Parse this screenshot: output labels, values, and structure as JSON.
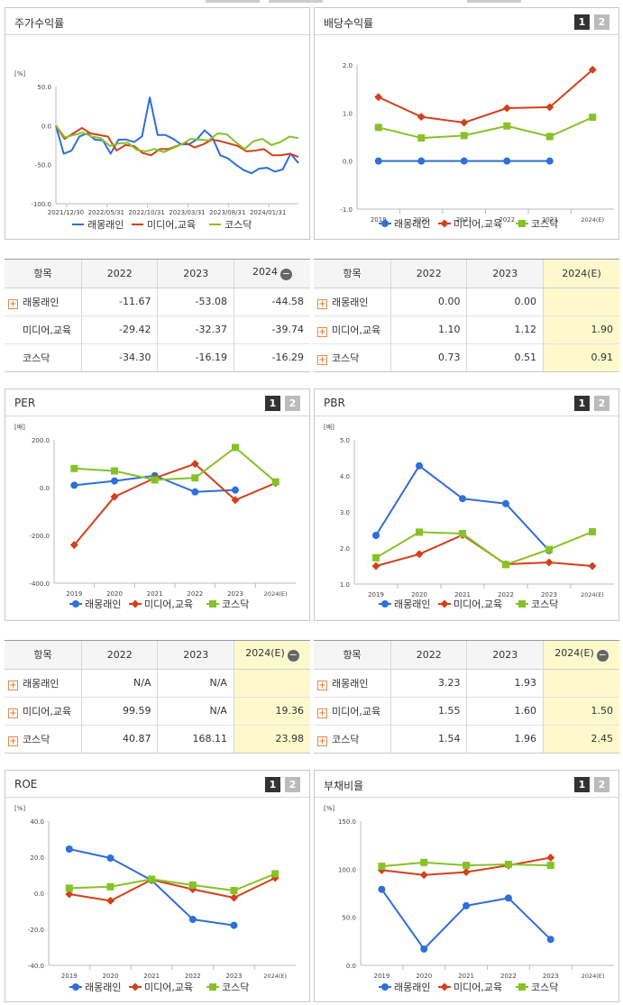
{
  "colors": {
    "series1": "#2e6fd8",
    "series2": "#d4401a",
    "series3": "#86c226",
    "highlight": "#fdf9cc"
  },
  "legend": [
    "래몽래인",
    "미디어,교육",
    "코스닥"
  ],
  "panels": {
    "stock": {
      "title": "주가수익률"
    },
    "dividend": {
      "title": "배당수익률",
      "page1": "1",
      "page2": "2"
    },
    "per": {
      "title": "PER",
      "page1": "1",
      "page2": "2"
    },
    "pbr": {
      "title": "PBR",
      "page1": "1",
      "page2": "2"
    },
    "roe": {
      "title": "ROE",
      "page1": "1",
      "page2": "2"
    },
    "debt": {
      "title": "부채비율",
      "page1": "1",
      "page2": "2"
    }
  },
  "chart_data": [
    {
      "id": "stock",
      "type": "line",
      "title": "주가수익률",
      "unit": "[%]",
      "ylim": [
        -100,
        50
      ],
      "yticks": [
        "50.0",
        "0.0",
        "-50.0",
        "-100.0"
      ],
      "xlabels": [
        "2021/12/30",
        "2022/05/31",
        "2022/10/31",
        "2023/03/31",
        "2023/08/31",
        "2024/01/31"
      ],
      "n": 46,
      "series": [
        {
          "name": "래몽래인",
          "values": [
            0,
            -36,
            -32,
            -14,
            -10,
            -18,
            -19,
            -36,
            -18,
            -18,
            -21,
            -14,
            36,
            -12,
            -12,
            -17,
            -24,
            -24,
            -18,
            -6,
            -15,
            -38,
            -42,
            -50,
            -57,
            -61,
            -55,
            -54,
            -59,
            -56,
            -36,
            -48
          ]
        },
        {
          "name": "미디어,교육",
          "values": [
            0,
            -17,
            -10,
            -3,
            -10,
            -12,
            -14,
            -32,
            -25,
            -26,
            -35,
            -38,
            -30,
            -30,
            -26,
            -22,
            -28,
            -24,
            -18,
            -20,
            -23,
            -26,
            -33,
            -32,
            -30,
            -38,
            -38,
            -36,
            -40
          ]
        },
        {
          "name": "코스닥",
          "values": [
            0,
            -15,
            -12,
            -9,
            -14,
            -16,
            -26,
            -23,
            -22,
            -31,
            -33,
            -30,
            -34,
            -29,
            -24,
            -17,
            -18,
            -19,
            -10,
            -11,
            -21,
            -30,
            -20,
            -17,
            -25,
            -21,
            -14,
            -16
          ]
        }
      ]
    },
    {
      "id": "dividend",
      "type": "line",
      "title": "배당수익률",
      "unit": "",
      "ylim": [
        -1,
        2
      ],
      "yticks": [
        "2.0",
        "1.0",
        "0.0",
        "-1.0"
      ],
      "categories": [
        "2019",
        "2020",
        "2021",
        "2022",
        "2023",
        "2024(E)"
      ],
      "series": [
        {
          "name": "래몽래인",
          "values": [
            0,
            0,
            0,
            0,
            0,
            null
          ]
        },
        {
          "name": "미디어,교육",
          "values": [
            1.33,
            0.92,
            0.8,
            1.1,
            1.12,
            1.9
          ]
        },
        {
          "name": "코스닥",
          "values": [
            0.7,
            0.48,
            0.53,
            0.73,
            0.51,
            0.91
          ]
        }
      ]
    },
    {
      "id": "per",
      "type": "line",
      "title": "PER",
      "unit": "[배]",
      "ylim": [
        -400,
        200
      ],
      "yticks": [
        "200.0",
        "0.0",
        "-200.0",
        "-400.0"
      ],
      "categories": [
        "2019",
        "2020",
        "2021",
        "2022",
        "2023",
        "2024(E)"
      ],
      "series": [
        {
          "name": "래몽래인",
          "values": [
            10,
            28,
            50,
            -18,
            -10,
            null
          ]
        },
        {
          "name": "미디어,교육",
          "values": [
            -240,
            -38,
            40,
            99.59,
            -52,
            19.36
          ]
        },
        {
          "name": "코스닥",
          "values": [
            80,
            70,
            32,
            40.87,
            168.11,
            23.98
          ]
        }
      ]
    },
    {
      "id": "pbr",
      "type": "line",
      "title": "PBR",
      "unit": "[배]",
      "ylim": [
        1,
        5
      ],
      "yticks": [
        "5.0",
        "4.0",
        "3.0",
        "2.0",
        "1.0"
      ],
      "categories": [
        "2019",
        "2020",
        "2021",
        "2022",
        "2023",
        "2024(E)"
      ],
      "series": [
        {
          "name": "래몽래인",
          "values": [
            2.35,
            4.28,
            3.37,
            3.23,
            1.93,
            null
          ]
        },
        {
          "name": "미디어,교육",
          "values": [
            1.5,
            1.83,
            2.36,
            1.55,
            1.6,
            1.5
          ]
        },
        {
          "name": "코스닥",
          "values": [
            1.73,
            2.44,
            2.4,
            1.54,
            1.96,
            2.45
          ]
        }
      ]
    },
    {
      "id": "roe",
      "type": "line",
      "title": "ROE",
      "unit": "[%]",
      "ylim": [
        -40,
        40
      ],
      "yticks": [
        "40.0",
        "20.0",
        "0.0",
        "-20.0",
        "-40.0"
      ],
      "categories": [
        "2019",
        "2020",
        "2021",
        "2022",
        "2023",
        "2024(E)"
      ],
      "series": [
        {
          "name": "래몽래인",
          "values": [
            24.5,
            19.5,
            7.2,
            -14.5,
            -17.8,
            null
          ]
        },
        {
          "name": "미디어,교육",
          "values": [
            -0.5,
            -4.2,
            7.5,
            2.2,
            -2.5,
            8.5
          ]
        },
        {
          "name": "코스닥",
          "values": [
            2.8,
            3.6,
            7.8,
            4.5,
            1.5,
            10.8
          ]
        }
      ]
    },
    {
      "id": "debt",
      "type": "line",
      "title": "부채비율",
      "unit": "[%]",
      "ylim": [
        0,
        150
      ],
      "yticks": [
        "150.0",
        "100.0",
        "50.0",
        "0.0"
      ],
      "categories": [
        "2019",
        "2020",
        "2021",
        "2022",
        "2023",
        "2024(E)"
      ],
      "series": [
        {
          "name": "래몽래인",
          "values": [
            79,
            17,
            62,
            70,
            27,
            null
          ]
        },
        {
          "name": "미디어,교육",
          "values": [
            99,
            94,
            97,
            104,
            112,
            null
          ]
        },
        {
          "name": "코스닥",
          "values": [
            103,
            107,
            104,
            105,
            104,
            null
          ]
        }
      ]
    }
  ],
  "tables": {
    "t_stock": {
      "headers": [
        "항목",
        "2022",
        "2023",
        "2024"
      ],
      "rows": [
        {
          "name": "래몽래인",
          "v": [
            "-11.67",
            "-53.08",
            "-44.58"
          ]
        },
        {
          "name": "미디어,교육",
          "v": [
            "-29.42",
            "-32.37",
            "-39.74"
          ]
        },
        {
          "name": "코스닥",
          "v": [
            "-34.30",
            "-16.19",
            "-16.29"
          ]
        }
      ]
    },
    "t_div": {
      "headers": [
        "항목",
        "2022",
        "2023",
        "2024(E)"
      ],
      "rows": [
        {
          "name": "래몽래인",
          "v": [
            "0.00",
            "0.00",
            ""
          ]
        },
        {
          "name": "미디어,교육",
          "v": [
            "1.10",
            "1.12",
            "1.90"
          ]
        },
        {
          "name": "코스닥",
          "v": [
            "0.73",
            "0.51",
            "0.91"
          ]
        }
      ]
    },
    "t_per": {
      "headers": [
        "항목",
        "2022",
        "2023",
        "2024(E)"
      ],
      "rows": [
        {
          "name": "래몽래인",
          "v": [
            "N/A",
            "N/A",
            ""
          ]
        },
        {
          "name": "미디어,교육",
          "v": [
            "99.59",
            "N/A",
            "19.36"
          ]
        },
        {
          "name": "코스닥",
          "v": [
            "40.87",
            "168.11",
            "23.98"
          ]
        }
      ]
    },
    "t_pbr": {
      "headers": [
        "항목",
        "2022",
        "2023",
        "2024(E)"
      ],
      "rows": [
        {
          "name": "래몽래인",
          "v": [
            "3.23",
            "1.93",
            ""
          ]
        },
        {
          "name": "미디어,교육",
          "v": [
            "1.55",
            "1.60",
            "1.50"
          ]
        },
        {
          "name": "코스닥",
          "v": [
            "1.54",
            "1.96",
            "2.45"
          ]
        }
      ]
    }
  }
}
